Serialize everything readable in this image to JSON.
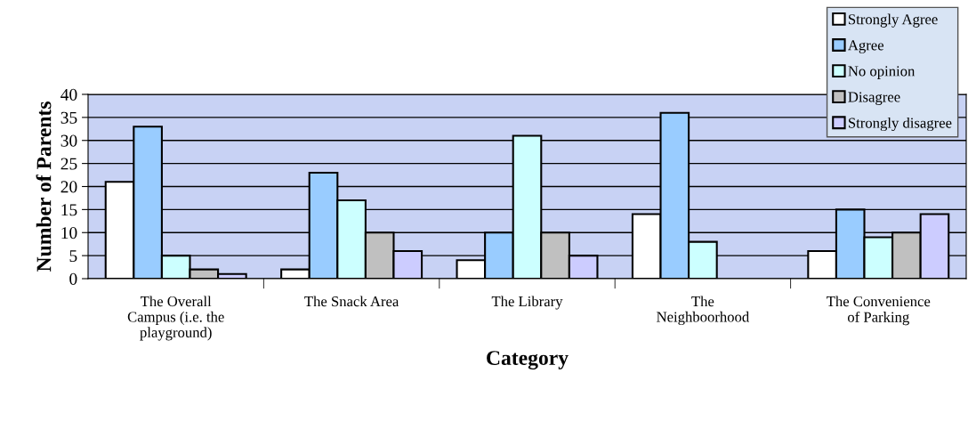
{
  "chart_data": {
    "type": "bar",
    "xlabel": "Category",
    "ylabel": "Number of Parents",
    "categories": [
      "The Overall\nCampus (i.e. the\nplayground)",
      "The Snack Area",
      "The Library",
      "The\nNeighboorhood",
      "The Convenience\nof Parking"
    ],
    "series": [
      {
        "name": "Strongly Agree",
        "color": "#ffffff",
        "values": [
          21,
          2,
          4,
          14,
          6
        ]
      },
      {
        "name": "Agree",
        "color": "#99ccff",
        "values": [
          33,
          23,
          10,
          36,
          15
        ]
      },
      {
        "name": "No opinion",
        "color": "#ccffff",
        "values": [
          5,
          17,
          31,
          8,
          9
        ]
      },
      {
        "name": "Disagree",
        "color": "#c0c0c0",
        "values": [
          2,
          10,
          10,
          null,
          10
        ]
      },
      {
        "name": "Strongly disagree",
        "color": "#ccccff",
        "values": [
          1,
          6,
          5,
          null,
          14
        ]
      }
    ],
    "ylim": [
      0,
      40
    ],
    "yticks": [
      0,
      5,
      10,
      15,
      20,
      25,
      30,
      35,
      40
    ],
    "grid": "y",
    "legend": "top right"
  }
}
